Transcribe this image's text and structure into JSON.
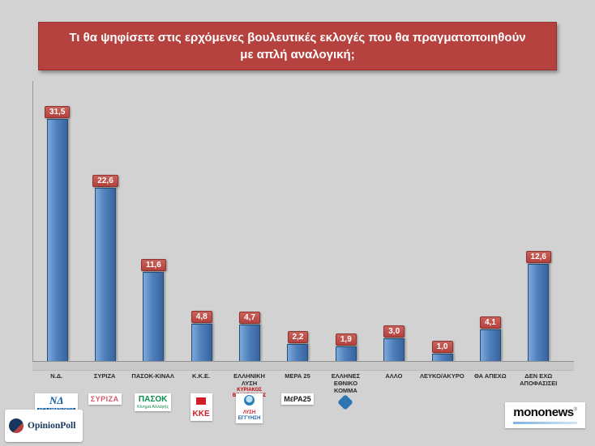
{
  "title": "Τι θα ψηφίσετε στις ερχόμενες βουλευτικές εκλογές που θα πραγματοποιηθούν με απλή αναλογική;",
  "chart_data": {
    "type": "bar",
    "title": "Τι θα ψηφίσετε στις ερχόμενες βουλευτικές εκλογές που θα πραγματοποιηθούν με απλή αναλογική;",
    "categories": [
      "Ν.Δ.",
      "ΣΥΡΙΖΑ",
      "ΠΑΣΟΚ-ΚΙΝΑΛ",
      "Κ.Κ.Ε.",
      "ΕΛΛΗΝΙΚΗ ΛΥΣΗ",
      "ΜΕΡΑ 25",
      "ΕΛΛΗΝΕΣ ΕΘΝΙΚΟ ΚΟΜΜΑ",
      "ΑΛΛΟ",
      "ΛΕΥΚΟ/ΑΚΥΡΟ",
      "ΘΑ ΑΠΕΧΩ",
      "ΔΕΝ ΕΧΩ ΑΠΟΦΑΣΙΣΕΙ"
    ],
    "values": [
      31.5,
      22.6,
      11.6,
      4.8,
      4.7,
      2.2,
      1.9,
      3.0,
      1.0,
      4.1,
      12.6
    ],
    "value_labels": [
      "31,5",
      "22,6",
      "11,6",
      "4,8",
      "4,7",
      "2,2",
      "1,9",
      "3,0",
      "1,0",
      "4,1",
      "12,6"
    ],
    "sub_labels": {
      "4": "ΚΥΡΙΑΚΟΣ ΒΕΛΟΠΟΥΛΟΣ"
    },
    "xlabel": "",
    "ylabel": "",
    "ylim": [
      0,
      35
    ],
    "grid": false,
    "legend": false,
    "bar_color": "#4f81bd",
    "label_color": "#b5423e"
  },
  "party_logos": [
    {
      "index": 0,
      "type": "nd",
      "icon": false,
      "lines": [
        "ΝΔ",
        "ΝΕΑ ΔΗΜΟΚΡΑΤΙΑ"
      ]
    },
    {
      "index": 1,
      "type": "syriza",
      "icon": false,
      "lines": [
        "ΣΥΡΙΖΑ"
      ]
    },
    {
      "index": 2,
      "type": "pasok",
      "icon": false,
      "lines": [
        "ΠΑΣΟΚ",
        "Κίνημα Αλλαγής"
      ]
    },
    {
      "index": 3,
      "type": "kke",
      "icon": true,
      "lines": [
        "ΚΚΕ"
      ]
    },
    {
      "index": 4,
      "type": "lysi",
      "icon": true,
      "lines": [
        "ΛΥΣΗ",
        "ΕΓΓΥΗΣΗ"
      ]
    },
    {
      "index": 5,
      "type": "mera25",
      "icon": false,
      "lines": [
        "ΜέΡΑ25"
      ]
    },
    {
      "index": 6,
      "type": "ellines",
      "icon": true,
      "lines": []
    }
  ],
  "branding": {
    "opinionpoll": {
      "name": "OpinionPoll"
    },
    "mononews": {
      "name": "mononews",
      "reg": "®"
    }
  }
}
